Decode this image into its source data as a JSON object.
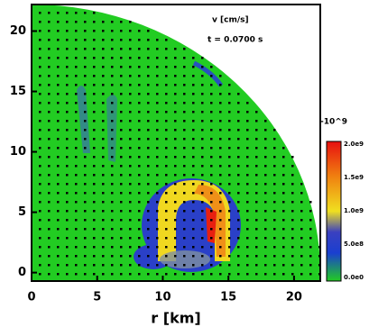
{
  "chart_data": {
    "type": "heatmap",
    "xlabel": "r [km]",
    "xlim": [
      0,
      22
    ],
    "ylim": [
      -0.7,
      22.2
    ],
    "xticks": [
      0,
      5,
      10,
      15,
      20
    ],
    "yticks": [
      0,
      5,
      10,
      15,
      20
    ],
    "annotations": [
      "v [cm/s]",
      "t = 0.0700 s"
    ],
    "colorbar": {
      "title": "-10^9",
      "labels": [
        "2.0e9",
        "1.5e9",
        "1.0e9",
        "5.0e8",
        "0.0e0"
      ]
    }
  }
}
